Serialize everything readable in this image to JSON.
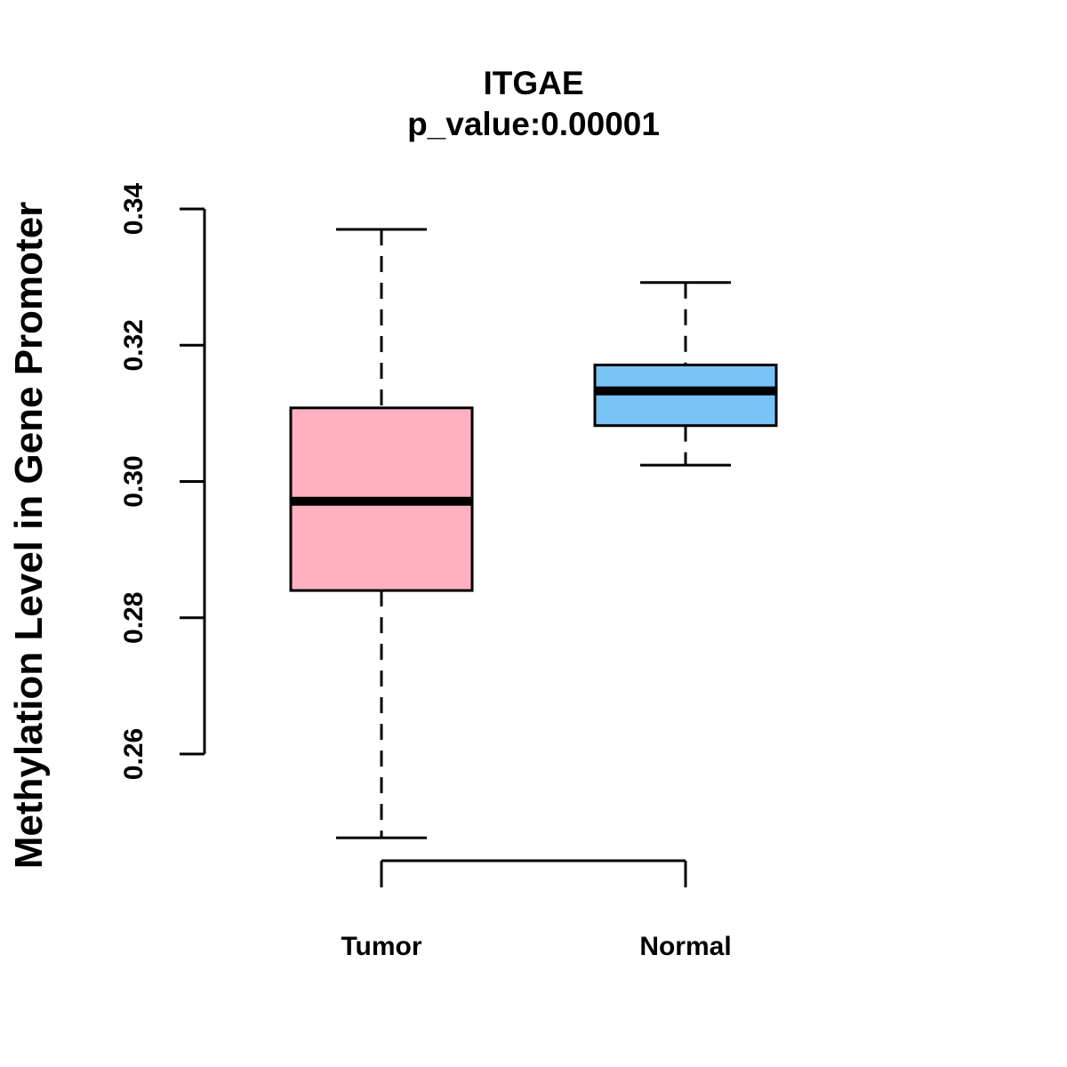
{
  "chart_data": {
    "type": "boxplot",
    "title": "ITGAE",
    "subtitle": "p_value:0.00001",
    "xlabel": "",
    "ylabel": "Methylation Level in Gene Promoter",
    "ylim": [
      0.245,
      0.34
    ],
    "yticks": [
      0.26,
      0.28,
      0.3,
      0.32,
      0.34
    ],
    "ytick_labels": [
      "0.26",
      "0.28",
      "0.30",
      "0.32",
      "0.34"
    ],
    "categories": [
      "Tumor",
      "Normal"
    ],
    "series": [
      {
        "name": "Tumor",
        "whisker_low": 0.2477,
        "q1": 0.284,
        "median": 0.2971,
        "q3": 0.3108,
        "whisker_high": 0.337,
        "color": "#FFB0C1"
      },
      {
        "name": "Normal",
        "whisker_low": 0.3024,
        "q1": 0.3082,
        "median": 0.3133,
        "q3": 0.3171,
        "whisker_high": 0.3292,
        "color": "#79C3F7"
      }
    ],
    "grid": false
  }
}
